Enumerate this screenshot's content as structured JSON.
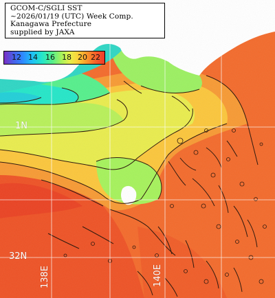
{
  "title": {
    "lines": [
      "GCOM-C/SGLI SST",
      "~2026/01/19 (UTC) Week Comp.",
      "Kanagawa Prefecture",
      "supplied by JAXA"
    ]
  },
  "colorbar": {
    "labels": [
      "12",
      "14",
      "16",
      "18",
      "20",
      "22"
    ],
    "min": 12,
    "max": 22
  },
  "grid_labels": {
    "lat_north": "1N",
    "lat_south": "32N",
    "lon_west": "138E",
    "lon_east": "140E"
  },
  "colors": {
    "land": "#ffffff",
    "ocean_warm": "#f36b2c",
    "ocean_warmer": "#ee4d24",
    "transition": "#fbd43a",
    "cool": "#a6f25c",
    "cold": "#25e6c8",
    "coldest": "#2f86ff",
    "contour": "#2a1408",
    "grid": "#ffffff"
  },
  "symbols": [
    "landmass",
    "sst-field",
    "isotherm-contours",
    "graticule"
  ]
}
